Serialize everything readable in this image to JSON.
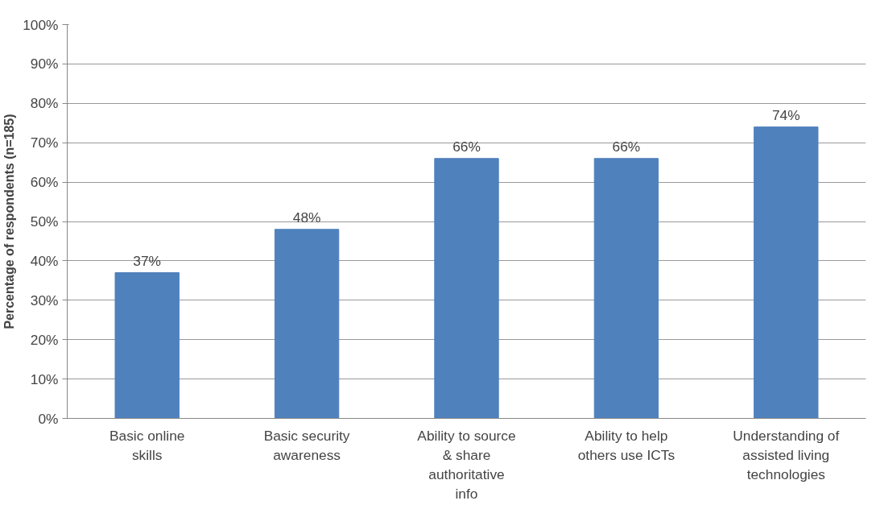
{
  "chart_data": {
    "type": "bar",
    "ylabel": "Percentage of respondents (n=185)",
    "categories": [
      "Basic online skills",
      "Basic security awareness",
      "Ability to source & share authoritative info",
      "Ability to help others use ICTs",
      "Understanding of assisted living technologies"
    ],
    "values": [
      37,
      48,
      66,
      66,
      74
    ],
    "value_labels": [
      "37%",
      "48%",
      "66%",
      "66%",
      "74%"
    ],
    "color": "#4f81bd",
    "ylim": [
      0,
      100
    ],
    "yticks": [
      {
        "value": 0,
        "label": "0%"
      },
      {
        "value": 10,
        "label": "10%"
      },
      {
        "value": 20,
        "label": "20%"
      },
      {
        "value": 30,
        "label": "30%"
      },
      {
        "value": 40,
        "label": "40%"
      },
      {
        "value": 50,
        "label": "50%"
      },
      {
        "value": 60,
        "label": "60%"
      },
      {
        "value": 70,
        "label": "70%"
      },
      {
        "value": 80,
        "label": "80%"
      },
      {
        "value": 90,
        "label": "90%"
      },
      {
        "value": 100,
        "label": "100%"
      }
    ],
    "grid": "y"
  }
}
